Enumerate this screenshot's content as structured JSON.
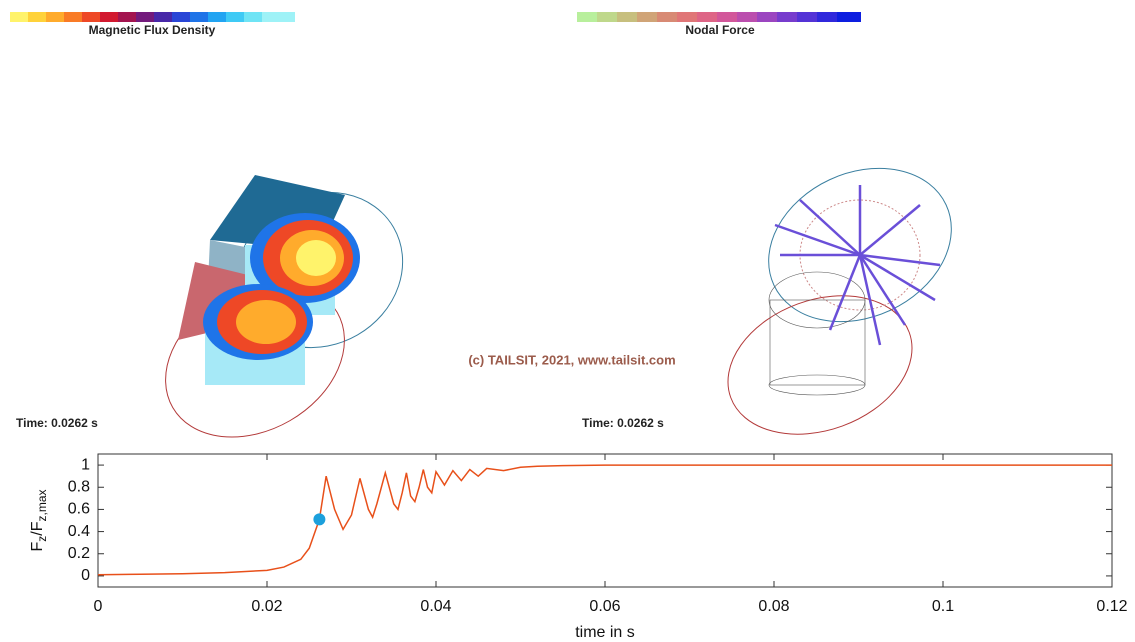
{
  "labels": {
    "left_colorbar": "Magnetic Flux Density",
    "right_colorbar": "Nodal Force",
    "copyright": "(c) TAILSIT, 2021, www.tailsit.com",
    "left_time": "Time: 0.0262 s",
    "right_time": "Time: 0.0262 s"
  },
  "chart_data": {
    "type": "line",
    "x_label": "time in s",
    "y_label": [
      "F",
      "z",
      "/F",
      "z,max"
    ],
    "x": [
      0,
      0.005,
      0.01,
      0.015,
      0.02,
      0.022,
      0.024,
      0.025,
      0.0262,
      0.027,
      0.028,
      0.029,
      0.03,
      0.031,
      0.032,
      0.0325,
      0.033,
      0.034,
      0.035,
      0.0355,
      0.036,
      0.0365,
      0.037,
      0.0375,
      0.038,
      0.0385,
      0.039,
      0.0395,
      0.04,
      0.041,
      0.042,
      0.043,
      0.044,
      0.045,
      0.046,
      0.048,
      0.05,
      0.052,
      0.055,
      0.06,
      0.08,
      0.1,
      0.12
    ],
    "values": [
      0.01,
      0.015,
      0.02,
      0.03,
      0.05,
      0.08,
      0.15,
      0.25,
      0.51,
      0.9,
      0.6,
      0.42,
      0.55,
      0.88,
      0.6,
      0.53,
      0.65,
      0.93,
      0.65,
      0.6,
      0.75,
      0.93,
      0.72,
      0.67,
      0.8,
      0.96,
      0.8,
      0.75,
      0.94,
      0.82,
      0.95,
      0.86,
      0.96,
      0.9,
      0.97,
      0.95,
      0.98,
      0.99,
      0.995,
      1,
      1,
      1,
      1
    ],
    "color": "#e8501a",
    "marker": {
      "x": 0.0262,
      "y": 0.51,
      "color": "#1ca0dc"
    },
    "xlim": [
      0,
      0.12
    ],
    "xticks": [
      0,
      0.02,
      0.04,
      0.06,
      0.08,
      0.1,
      0.12
    ],
    "ylim": [
      -0.1,
      1.1
    ],
    "yticks": [
      0,
      0.2,
      0.4,
      0.6,
      0.8,
      1
    ],
    "grid": false
  }
}
